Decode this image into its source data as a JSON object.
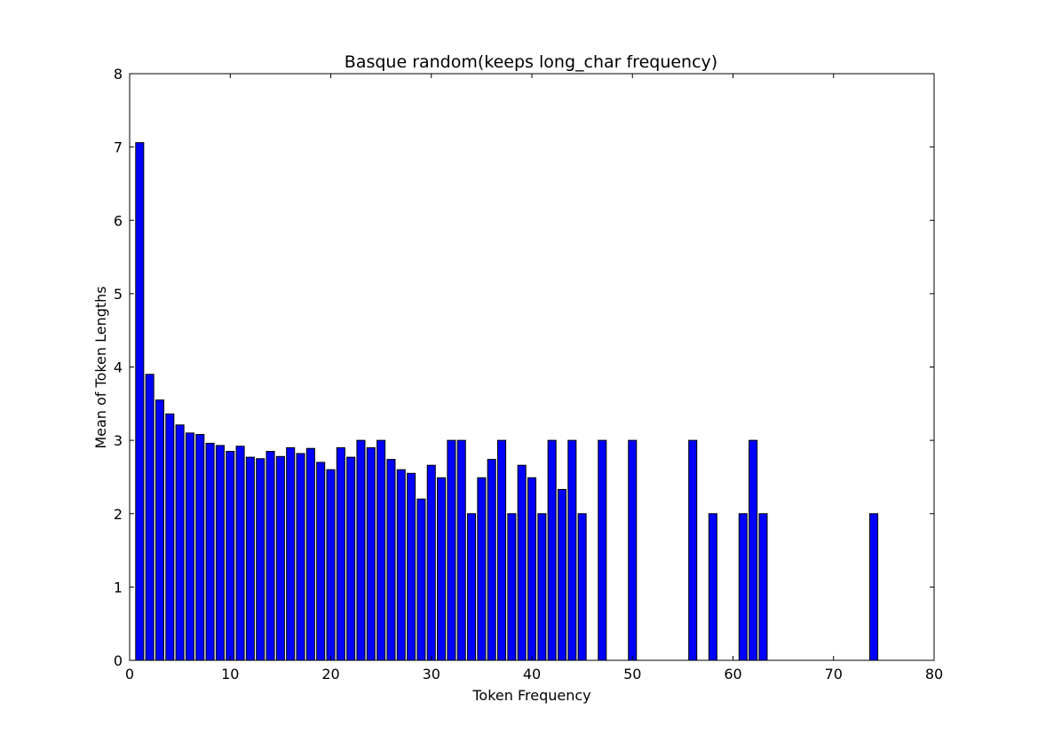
{
  "chart_data": {
    "type": "bar",
    "title": "Basque random(keeps long_char frequency)",
    "xlabel": "Token Frequency",
    "ylabel": "Mean of Token Lengths",
    "xlim": [
      0,
      80
    ],
    "ylim": [
      0,
      8
    ],
    "xticks": [
      0,
      10,
      20,
      30,
      40,
      50,
      60,
      70,
      80
    ],
    "yticks": [
      0,
      1,
      2,
      3,
      4,
      5,
      6,
      7,
      8
    ],
    "bar_width": 0.8,
    "bar_color": "#0000ff",
    "grid": false,
    "x": [
      1,
      2,
      3,
      4,
      5,
      6,
      7,
      8,
      9,
      10,
      11,
      12,
      13,
      14,
      15,
      16,
      17,
      18,
      19,
      20,
      21,
      22,
      23,
      24,
      25,
      26,
      27,
      28,
      29,
      30,
      31,
      32,
      33,
      34,
      35,
      36,
      37,
      38,
      39,
      40,
      41,
      42,
      43,
      44,
      45,
      47,
      50,
      56,
      58,
      61,
      62,
      63,
      74
    ],
    "values": [
      7.06,
      3.9,
      3.55,
      3.36,
      3.21,
      3.1,
      3.08,
      2.96,
      2.93,
      2.85,
      2.92,
      2.77,
      2.75,
      2.85,
      2.78,
      2.9,
      2.82,
      2.89,
      2.7,
      2.6,
      2.9,
      2.77,
      3.0,
      2.9,
      3.0,
      2.74,
      2.6,
      2.55,
      2.2,
      2.66,
      2.49,
      3.0,
      3.0,
      2.0,
      2.49,
      2.74,
      3.0,
      2.0,
      2.66,
      2.49,
      2.0,
      3.0,
      2.33,
      3.0,
      2.0,
      3.0,
      3.0,
      3.0,
      2.0,
      2.0,
      3.0,
      2.0,
      2.0
    ]
  }
}
